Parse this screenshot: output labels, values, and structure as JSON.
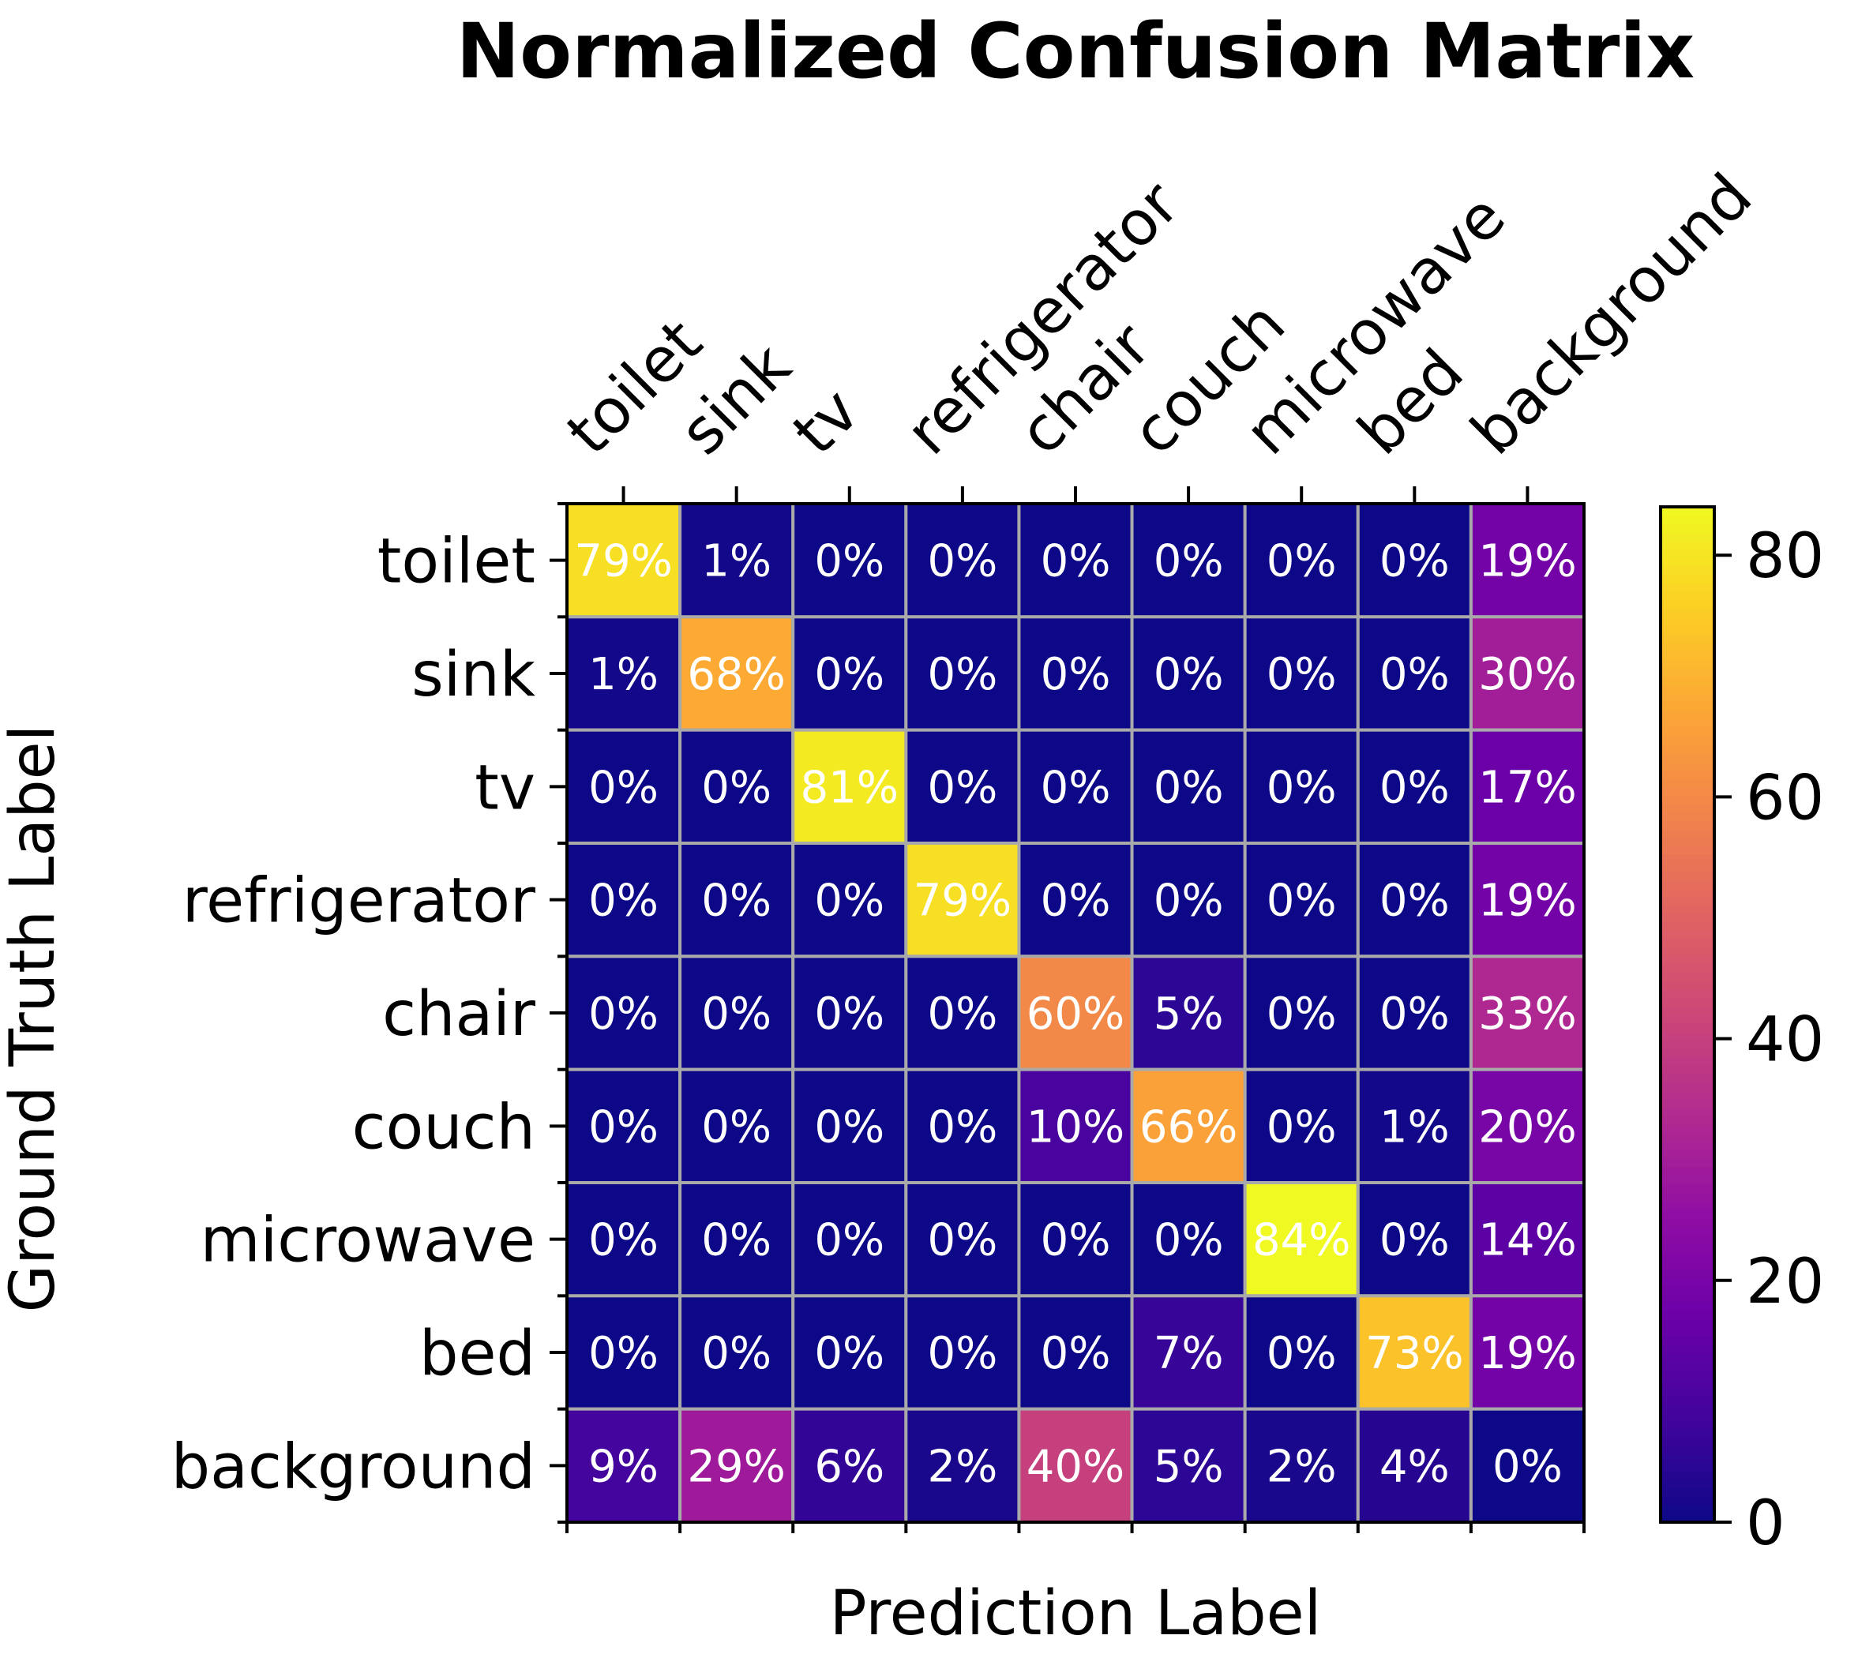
{
  "chart_data": {
    "type": "heatmap",
    "title": "Normalized Confusion Matrix",
    "xlabel": "Prediction Label",
    "ylabel": "Ground Truth Label",
    "x_categories": [
      "toilet",
      "sink",
      "tv",
      "refrigerator",
      "chair",
      "couch",
      "microwave",
      "bed",
      "background"
    ],
    "y_categories": [
      "toilet",
      "sink",
      "tv",
      "refrigerator",
      "chair",
      "couch",
      "microwave",
      "bed",
      "background"
    ],
    "values": [
      [
        79,
        1,
        0,
        0,
        0,
        0,
        0,
        0,
        19
      ],
      [
        1,
        68,
        0,
        0,
        0,
        0,
        0,
        0,
        30
      ],
      [
        0,
        0,
        81,
        0,
        0,
        0,
        0,
        0,
        17
      ],
      [
        0,
        0,
        0,
        79,
        0,
        0,
        0,
        0,
        19
      ],
      [
        0,
        0,
        0,
        0,
        60,
        5,
        0,
        0,
        33
      ],
      [
        0,
        0,
        0,
        0,
        10,
        66,
        0,
        1,
        20
      ],
      [
        0,
        0,
        0,
        0,
        0,
        0,
        84,
        0,
        14
      ],
      [
        0,
        0,
        0,
        0,
        0,
        7,
        0,
        73,
        19
      ],
      [
        9,
        29,
        6,
        2,
        40,
        5,
        2,
        4,
        0
      ]
    ],
    "value_suffix": "%",
    "colormap": "plasma",
    "colorbar": {
      "range": [
        0,
        84
      ],
      "ticks": [
        0,
        20,
        40,
        60,
        80
      ]
    },
    "cell_border_color": "#a9a9a9"
  }
}
